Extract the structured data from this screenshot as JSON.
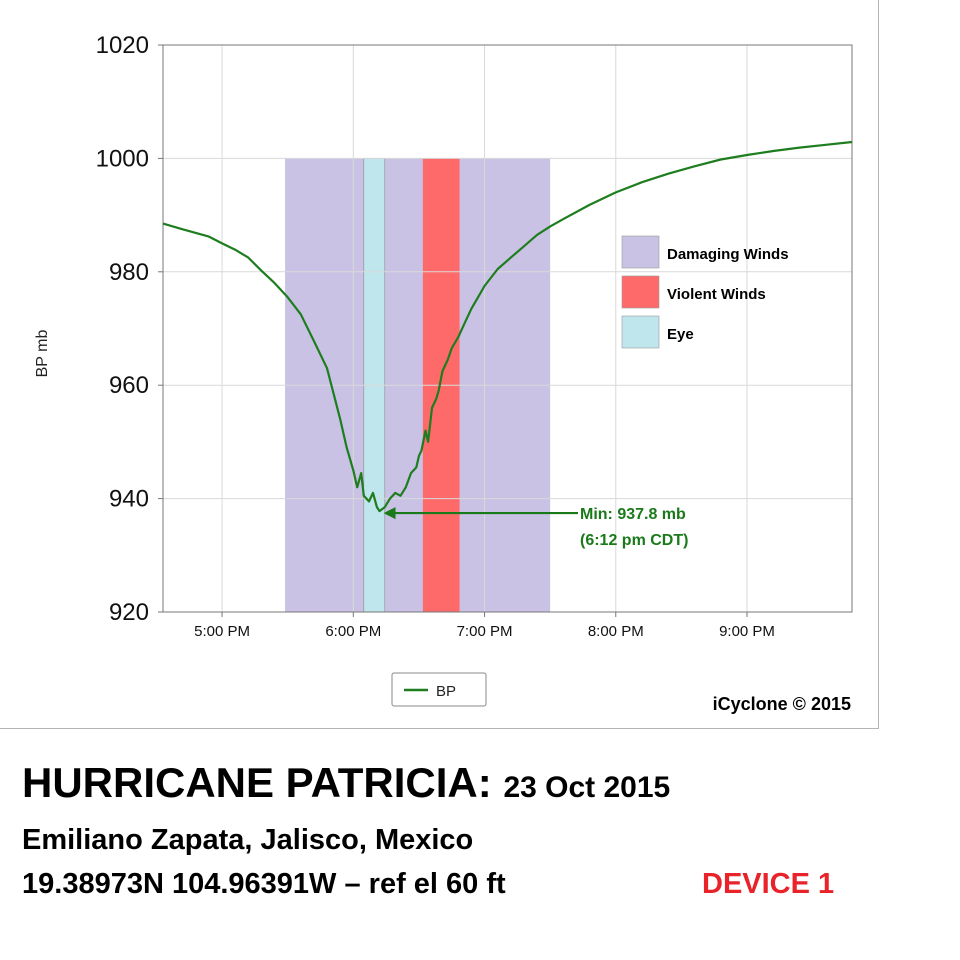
{
  "chart_data": {
    "type": "line",
    "ylabel": "BP mb",
    "ylim": [
      920,
      1020
    ],
    "yticks": [
      "1020",
      "1000",
      "980",
      "960",
      "940",
      "920"
    ],
    "xlim_hours": [
      16.55,
      21.8
    ],
    "xticks": [
      {
        "label": "5:00 PM",
        "hour": 17
      },
      {
        "label": "6:00 PM",
        "hour": 18
      },
      {
        "label": "7:00 PM",
        "hour": 19
      },
      {
        "label": "8:00 PM",
        "hour": 20
      },
      {
        "label": "9:00 PM",
        "hour": 21
      }
    ],
    "grid": true,
    "series": [
      {
        "name": "BP",
        "color": "#1e7d1e",
        "points": [
          [
            16.55,
            988.5
          ],
          [
            16.7,
            987.5
          ],
          [
            16.9,
            986.2
          ],
          [
            17.0,
            985.0
          ],
          [
            17.1,
            983.9
          ],
          [
            17.2,
            982.5
          ],
          [
            17.3,
            980.2
          ],
          [
            17.4,
            978.0
          ],
          [
            17.5,
            975.5
          ],
          [
            17.6,
            972.5
          ],
          [
            17.7,
            967.8
          ],
          [
            17.8,
            963.0
          ],
          [
            17.85,
            958.5
          ],
          [
            17.9,
            954.0
          ],
          [
            17.95,
            949.0
          ],
          [
            18.0,
            945.0
          ],
          [
            18.03,
            942.0
          ],
          [
            18.06,
            944.5
          ],
          [
            18.08,
            940.5
          ],
          [
            18.12,
            939.5
          ],
          [
            18.15,
            941.0
          ],
          [
            18.18,
            938.5
          ],
          [
            18.2,
            937.8
          ],
          [
            18.24,
            938.5
          ],
          [
            18.28,
            940.0
          ],
          [
            18.32,
            941.0
          ],
          [
            18.36,
            940.5
          ],
          [
            18.4,
            942.0
          ],
          [
            18.44,
            944.5
          ],
          [
            18.48,
            945.5
          ],
          [
            18.5,
            947.5
          ],
          [
            18.52,
            948.5
          ],
          [
            18.55,
            952.0
          ],
          [
            18.57,
            950.0
          ],
          [
            18.6,
            956.0
          ],
          [
            18.63,
            957.5
          ],
          [
            18.65,
            959.0
          ],
          [
            18.68,
            962.5
          ],
          [
            18.72,
            964.5
          ],
          [
            18.75,
            966.5
          ],
          [
            18.8,
            968.5
          ],
          [
            18.85,
            971.0
          ],
          [
            18.9,
            973.5
          ],
          [
            18.95,
            975.5
          ],
          [
            19.0,
            977.5
          ],
          [
            19.1,
            980.5
          ],
          [
            19.2,
            982.5
          ],
          [
            19.3,
            984.5
          ],
          [
            19.4,
            986.5
          ],
          [
            19.5,
            988.0
          ],
          [
            19.6,
            989.3
          ],
          [
            19.8,
            991.8
          ],
          [
            20.0,
            994.0
          ],
          [
            20.2,
            995.8
          ],
          [
            20.4,
            997.3
          ],
          [
            20.6,
            998.6
          ],
          [
            20.8,
            999.8
          ],
          [
            21.0,
            1000.6
          ],
          [
            21.2,
            1001.3
          ],
          [
            21.4,
            1001.9
          ],
          [
            21.6,
            1002.4
          ],
          [
            21.8,
            1002.9
          ]
        ]
      }
    ],
    "bands": [
      {
        "name": "Damaging Winds",
        "color": "#c9c2e5",
        "start": 17.48,
        "end": 19.5,
        "top": 1000
      },
      {
        "name": "Eye",
        "color": "#bfe6ec",
        "start": 18.08,
        "end": 18.24,
        "top": 1000
      },
      {
        "name": "Violent Winds",
        "color": "#fe6a6a",
        "start": 18.53,
        "end": 18.81,
        "top": 1000
      }
    ],
    "band_legend": [
      {
        "label": "Damaging Winds",
        "color": "#c9c2e5"
      },
      {
        "label": "Violent Winds",
        "color": "#fe6a6a"
      },
      {
        "label": "Eye",
        "color": "#bfe6ec"
      }
    ],
    "annotation": {
      "line1": "Min: 937.8 mb",
      "line2": "(6:12 pm CDT)",
      "point_hour": 18.2,
      "point_value": 937.8,
      "color": "#1a7a1a"
    },
    "series_legend_label": "BP",
    "credit": "iCyclone © 2015"
  },
  "caption": {
    "title": "HURRICANE PATRICIA:",
    "date": "23 Oct 2015",
    "location": "Emiliano Zapata, Jalisco, Mexico",
    "coords": "19.38973N 104.96391W – ref el 60 ft",
    "device": "DEVICE 1"
  }
}
